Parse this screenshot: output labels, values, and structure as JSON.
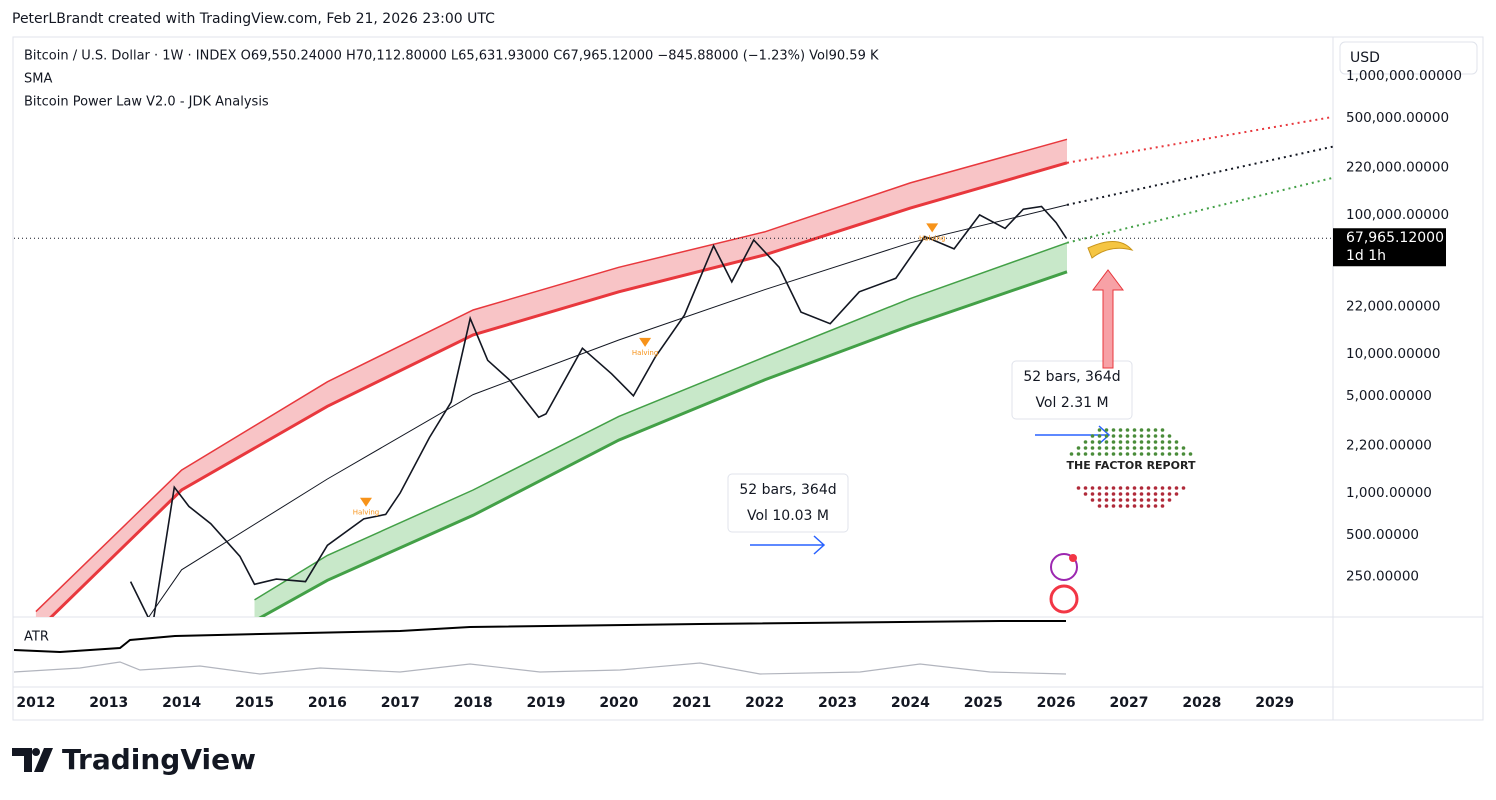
{
  "header": {
    "credit": "PeterLBrandt created with TradingView.com, Feb 21, 2026 23:00 UTC",
    "legend": [
      "Bitcoin / U.S. Dollar · 1W · INDEX  O69,550.24000  H70,112.80000  L65,631.93000  C67,965.12000  −845.88000 (−1.23%)  Vol90.59 K",
      "SMA",
      "Bitcoin Power Law V2.0 - JDK Analysis"
    ],
    "currency": "USD"
  },
  "chart_data": {
    "type": "line",
    "log_scale": true,
    "xlim": [
      2011.7,
      2029.8
    ],
    "ylim": [
      128,
      1875000
    ],
    "xticks": [
      2012,
      2013,
      2014,
      2015,
      2016,
      2017,
      2018,
      2019,
      2020,
      2021,
      2022,
      2023,
      2024,
      2025,
      2026,
      2027,
      2028,
      2029
    ],
    "yticks": [
      {
        "value": 1000000,
        "label": "1,000,000.00000"
      },
      {
        "value": 500000,
        "label": "500,000.00000"
      },
      {
        "value": 220000,
        "label": "220,000.00000"
      },
      {
        "value": 100000,
        "label": "100,000.00000"
      },
      {
        "value": 22000,
        "label": "22,000.00000"
      },
      {
        "value": 10000,
        "label": "10,000.00000"
      },
      {
        "value": 5000,
        "label": "5,000.00000"
      },
      {
        "value": 2200,
        "label": "2,200.00000"
      },
      {
        "value": 1000,
        "label": "1,000.00000"
      },
      {
        "value": 500,
        "label": "500.00000"
      },
      {
        "value": 250,
        "label": "250.00000"
      }
    ],
    "series": [
      {
        "color": "#131722",
        "x": [
          2013.3,
          2013.6,
          2013.9,
          2014.1,
          2014.4,
          2014.8,
          2015.0,
          2015.3,
          2015.7,
          2016.0,
          2016.5,
          2016.8,
          2017.0,
          2017.4,
          2017.7,
          2017.96,
          2018.2,
          2018.5,
          2018.9,
          2019.0,
          2019.5,
          2019.9,
          2020.2,
          2020.5,
          2020.9,
          2021.3,
          2021.55,
          2021.85,
          2022.2,
          2022.5,
          2022.9,
          2023.3,
          2023.8,
          2024.2,
          2024.6,
          2024.95,
          2025.3,
          2025.55,
          2025.8,
          2026.0,
          2026.14
        ],
        "values": [
          230,
          110,
          1100,
          800,
          600,
          350,
          220,
          240,
          230,
          420,
          650,
          700,
          1000,
          2500,
          4500,
          18000,
          9000,
          6500,
          3500,
          3700,
          11000,
          7200,
          5000,
          9500,
          19000,
          60000,
          33000,
          66000,
          42000,
          20000,
          16500,
          28000,
          35000,
          70000,
          57000,
          100000,
          80000,
          110000,
          115000,
          88000,
          67965.12
        ]
      }
    ],
    "bands": [
      {
        "color": "#e8383d",
        "fill": "#f8c4c6",
        "x": [
          2012,
          2014,
          2016,
          2018,
          2020,
          2022,
          2024,
          2026.15
        ],
        "upper": [
          140,
          1460,
          6300,
          20700,
          42000,
          75500,
          170000,
          350000
        ],
        "lower": [
          100,
          1050,
          4200,
          13700,
          28000,
          51600,
          112000,
          237000
        ]
      },
      {
        "color": "#43a047",
        "fill": "#c8e8c9",
        "x": [
          2015,
          2016,
          2018,
          2020,
          2022,
          2024,
          2026.15
        ],
        "upper": [
          170,
          355,
          1050,
          3550,
          9500,
          25000,
          63000
        ],
        "lower": [
          120,
          235,
          690,
          2400,
          6500,
          16000,
          39000
        ]
      }
    ],
    "center": {
      "color": "#131722",
      "x": [
        2013.55,
        2014,
        2016,
        2018,
        2020,
        2022,
        2024,
        2026.15
      ],
      "values": [
        128,
        280,
        1260,
        5100,
        12600,
        29000,
        63000,
        118000
      ]
    },
    "projections": [
      {
        "color": "#e8383d",
        "x": [
          2026.15,
          2029.8
        ],
        "values": [
          237000,
          507000
        ]
      },
      {
        "color": "#131722",
        "x": [
          2026.15,
          2029.8
        ],
        "values": [
          118000,
          310000
        ]
      },
      {
        "color": "#43a047",
        "x": [
          2026.15,
          2029.8
        ],
        "values": [
          63000,
          185000
        ]
      }
    ],
    "last_price": {
      "value": 67965.12,
      "label": "67,965.12000",
      "countdown": "1d 1h"
    },
    "halvings": [
      {
        "x": 2016.53,
        "value": 850,
        "label": "Halving"
      },
      {
        "x": 2020.36,
        "value": 12000,
        "label": "Halving"
      },
      {
        "x": 2024.3,
        "value": 80000,
        "label": "Halving"
      }
    ],
    "annotations": [
      {
        "text": "52 bars, 364d",
        "volume": "Vol 10.03 M"
      },
      {
        "text": "52 bars, 364d",
        "volume": "Vol 2.31 M"
      }
    ]
  },
  "pane_label": "ATR",
  "watermark": "THE FACTOR REPORT",
  "footer": {
    "brand": "TradingView"
  }
}
